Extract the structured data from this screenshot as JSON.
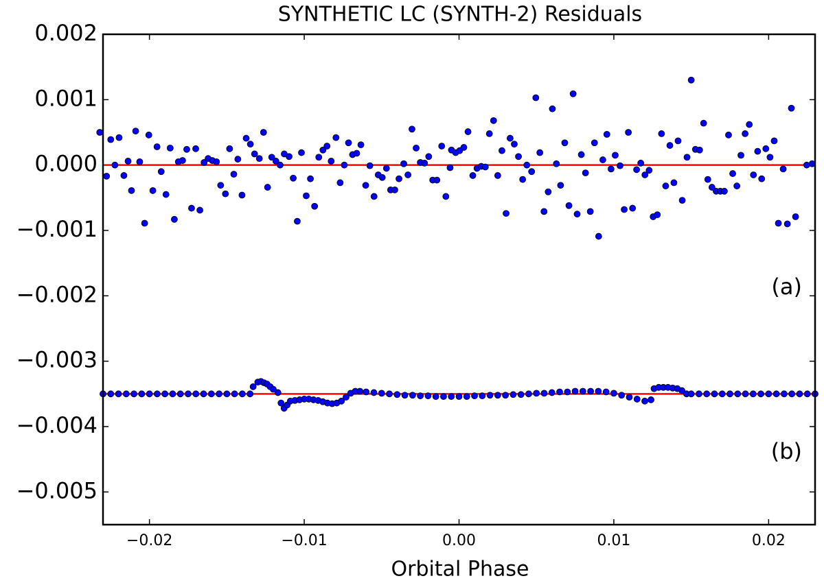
{
  "chart_data": {
    "type": "scatter",
    "title": "SYNTHETIC LC (SYNTH-2) Residuals",
    "xlabel": "Orbital Phase",
    "annotations": [
      "(a)",
      "(b)"
    ],
    "xlim": [
      -0.023,
      0.023
    ],
    "xticks": [
      {
        "value": -0.02,
        "label": "−0.02"
      },
      {
        "value": -0.01,
        "label": "−0.01"
      },
      {
        "value": 0,
        "label": "0.00"
      },
      {
        "value": 0.01,
        "label": "0.01"
      },
      {
        "value": 0.02,
        "label": "0.02"
      }
    ],
    "ylim": [
      -0.0055,
      0.002
    ],
    "yticks": [
      0.002,
      0.001,
      {
        "value": 0,
        "label": "0.000"
      },
      {
        "value": -0.001,
        "label": "−0.001"
      },
      {
        "value": -0.002,
        "label": "−0.002"
      },
      {
        "value": -0.003,
        "label": "−0.003"
      },
      {
        "value": -0.004,
        "label": "−0.004"
      },
      {
        "value": -0.005,
        "label": "−0.005"
      }
    ],
    "grid": false,
    "hlines": [
      0,
      -0.0035
    ],
    "hline_color": "#ff0000",
    "series": [
      {
        "color": "#0000ff",
        "x": [
          -0.02321,
          -0.02277,
          -0.0225,
          -0.02223,
          -0.02196,
          -0.02165,
          -0.02138,
          -0.02116,
          -0.02089,
          -0.02063,
          -0.02031,
          -0.02004,
          -0.01978,
          -0.01951,
          -0.01924,
          -0.01893,
          -0.01866,
          -0.01839,
          -0.01813,
          -0.01786,
          -0.01759,
          -0.01728,
          -0.01701,
          -0.01674,
          -0.01647,
          -0.01621,
          -0.01594,
          -0.01567,
          -0.0154,
          -0.01509,
          -0.01482,
          -0.01455,
          -0.01429,
          -0.01402,
          -0.01375,
          -0.01348,
          -0.01321,
          -0.0129,
          -0.01263,
          -0.01237,
          -0.0121,
          -0.01183,
          -0.01156,
          -0.01129,
          -0.01098,
          -0.01071,
          -0.01045,
          -0.01018,
          -0.00987,
          -0.0096,
          -0.00933,
          -0.00906,
          -0.00879,
          -0.00853,
          -0.00826,
          -0.00795,
          -0.00768,
          -0.00741,
          -0.00714,
          -0.00688,
          -0.00661,
          -0.00634,
          -0.00603,
          -0.00576,
          -0.00549,
          -0.00522,
          -0.00496,
          -0.00469,
          -0.00442,
          -0.00415,
          -0.00388,
          -0.00357,
          -0.0033,
          -0.00304,
          -0.00277,
          -0.0025,
          -0.00223,
          -0.00196,
          -0.0017,
          -0.00143,
          -0.00112,
          -0.00085,
          -0.00058,
          -0.00049,
          -0.00022,
          4e-05,
          0.00031,
          0.00058,
          0.00089,
          0.00116,
          0.00143,
          0.0017,
          0.00196,
          0.00223,
          0.0025,
          0.00277,
          0.00304,
          0.0033,
          0.00357,
          0.00384,
          0.00411,
          0.00438,
          0.00469,
          0.00496,
          0.00522,
          0.00549,
          0.00576,
          0.00603,
          0.00629,
          0.00656,
          0.00683,
          0.0071,
          0.00737,
          0.00763,
          0.0079,
          0.00817,
          0.00848,
          0.00875,
          0.00902,
          0.00929,
          0.00955,
          0.00982,
          0.01009,
          0.0104,
          0.01067,
          0.01094,
          0.01121,
          0.01147,
          0.01174,
          0.01201,
          0.01228,
          0.01254,
          0.01281,
          0.01308,
          0.01335,
          0.01362,
          0.01388,
          0.01415,
          0.01442,
          0.01473,
          0.015,
          0.01527,
          0.01554,
          0.0158,
          0.01607,
          0.01634,
          0.01661,
          0.01688,
          0.01714,
          0.01741,
          0.01768,
          0.01795,
          0.01821,
          0.01848,
          0.01875,
          0.01902,
          0.01929,
          0.01955,
          0.01982,
          0.02009,
          0.02036,
          0.02063,
          0.02094,
          0.02121,
          0.02147,
          0.02174,
          0.02246,
          0.02281
        ],
        "values": [
          0.0005,
          -0.00017,
          0.00039,
          0,
          0.00042,
          -0.00016,
          6e-05,
          -0.00039,
          0.00052,
          5e-05,
          -0.00089,
          0.00046,
          -0.00039,
          0.00028,
          -0.0001,
          -0.00045,
          0.00026,
          -0.00083,
          5e-05,
          7e-05,
          0.00024,
          -0.00066,
          0.00025,
          -0.00069,
          4e-05,
          0.0001,
          7e-05,
          5e-05,
          -0.00031,
          -0.00044,
          0.00025,
          -0.00014,
          9e-05,
          -0.00046,
          0.00041,
          0.00032,
          0.00017,
          0.0001,
          0.0005,
          -0.00034,
          0.00012,
          6e-05,
          0,
          0.00017,
          0.00013,
          -0.0002,
          -0.00086,
          0.00019,
          -0.00047,
          -0.00021,
          -0.00063,
          0.00012,
          0.00023,
          0.00029,
          6e-05,
          0.00042,
          -0.00027,
          0,
          0.00034,
          0.00016,
          0.00018,
          0.00031,
          -0.00031,
          -1e-05,
          -0.00048,
          -0.00015,
          -0.00019,
          -5e-05,
          -0.00038,
          -0.00038,
          -0.00021,
          2e-05,
          -0.00015,
          0.00055,
          0.00026,
          4e-05,
          3e-05,
          0.00013,
          -0.00023,
          -0.00023,
          0.00029,
          -0.00048,
          -4e-05,
          0.00023,
          0.00019,
          0.00022,
          0.00027,
          0.00051,
          -0.00016,
          -5e-05,
          -2e-05,
          -3e-05,
          0.00048,
          0.00068,
          -0.00016,
          0.00022,
          -0.00074,
          0.00041,
          0.00032,
          0.00013,
          -0.00022,
          0,
          -0.0001,
          0.00103,
          0.00019,
          -0.00071,
          -0.00041,
          0.00086,
          2e-05,
          -0.00031,
          0.00034,
          -0.00062,
          0.00109,
          -0.00075,
          0.00016,
          -0.00012,
          -0.00071,
          0.00034,
          -0.00109,
          8e-05,
          0.00047,
          -6e-05,
          0.00015,
          -1e-05,
          -0.00068,
          0.0005,
          -0.00066,
          -7e-05,
          3e-05,
          -0.00015,
          -8e-05,
          -0.00079,
          -0.00076,
          0.00048,
          -0.00032,
          0.0003,
          -0.00027,
          0.00037,
          -0.00054,
          0.00012,
          0.0013,
          0.00024,
          0.00023,
          0.00064,
          -0.00022,
          -0.00034,
          -0.0004,
          -0.0004,
          -0.0004,
          0.00046,
          -0.00013,
          -0.00032,
          0.00015,
          0.00048,
          0.00062,
          -0.00015,
          0.00021,
          -0.00021,
          0.00025,
          0.00012,
          0.00037,
          -0.00089,
          -6e-05,
          -0.0009,
          0.00087,
          -0.00079,
          0,
          2e-05
        ]
      },
      {
        "color": "#0000ff",
        "x": [
          -0.023,
          -0.0225,
          -0.022,
          -0.0215,
          -0.021,
          -0.0205,
          -0.02,
          -0.0195,
          -0.019,
          -0.0185,
          -0.018,
          -0.0175,
          -0.017,
          -0.0165,
          -0.016,
          -0.0155,
          -0.015,
          -0.0145,
          -0.014,
          -0.0135,
          -0.0133,
          -0.013,
          -0.0128,
          -0.0126,
          -0.0124,
          -0.0122,
          -0.012,
          -0.0117,
          -0.0115,
          -0.0113,
          -0.0111,
          -0.0109,
          -0.0106,
          -0.0103,
          -0.01,
          -0.0097,
          -0.0094,
          -0.0091,
          -0.0088,
          -0.0085,
          -0.0082,
          -0.0079,
          -0.0076,
          -0.0073,
          -0.007,
          -0.0067,
          -0.0064,
          -0.006,
          -0.0055,
          -0.005,
          -0.0045,
          -0.004,
          -0.0035,
          -0.003,
          -0.0025,
          -0.002,
          -0.0015,
          -0.001,
          -0.0005,
          0,
          0.0005,
          0.001,
          0.0015,
          0.002,
          0.0025,
          0.003,
          0.0035,
          0.004,
          0.0045,
          0.005,
          0.0055,
          0.006,
          0.0065,
          0.007,
          0.0075,
          0.008,
          0.0085,
          0.009,
          0.0095,
          0.01,
          0.0105,
          0.011,
          0.0115,
          0.012,
          0.0124,
          0.0126,
          0.0129,
          0.0132,
          0.0135,
          0.0138,
          0.0141,
          0.0144,
          0.0147,
          0.015,
          0.0155,
          0.016,
          0.0165,
          0.017,
          0.0175,
          0.018,
          0.0185,
          0.019,
          0.0195,
          0.02,
          0.0205,
          0.021,
          0.0215,
          0.022,
          0.0225,
          0.023
        ],
        "values": [
          -0.0035,
          -0.0035,
          -0.0035,
          -0.0035,
          -0.0035,
          -0.0035,
          -0.0035,
          -0.0035,
          -0.0035,
          -0.0035,
          -0.0035,
          -0.0035,
          -0.0035,
          -0.0035,
          -0.0035,
          -0.0035,
          -0.0035,
          -0.0035,
          -0.0035,
          -0.0035,
          -0.00339,
          -0.00332,
          -0.00331,
          -0.00333,
          -0.00335,
          -0.00339,
          -0.00343,
          -0.00348,
          -0.00364,
          -0.00372,
          -0.00367,
          -0.00361,
          -0.0036,
          -0.00359,
          -0.00358,
          -0.00358,
          -0.00359,
          -0.0036,
          -0.00362,
          -0.00364,
          -0.00365,
          -0.00364,
          -0.00361,
          -0.00355,
          -0.00349,
          -0.00346,
          -0.00346,
          -0.00347,
          -0.00348,
          -0.00349,
          -0.0035,
          -0.00351,
          -0.00352,
          -0.00352,
          -0.00353,
          -0.00353,
          -0.00354,
          -0.00354,
          -0.00354,
          -0.00354,
          -0.00354,
          -0.00353,
          -0.00353,
          -0.00352,
          -0.00352,
          -0.00352,
          -0.00351,
          -0.00351,
          -0.0035,
          -0.00349,
          -0.00349,
          -0.00348,
          -0.00347,
          -0.00347,
          -0.00346,
          -0.00346,
          -0.00346,
          -0.00346,
          -0.00347,
          -0.00349,
          -0.00352,
          -0.00355,
          -0.00358,
          -0.00361,
          -0.00359,
          -0.00342,
          -0.0034,
          -0.0034,
          -0.0034,
          -0.00341,
          -0.00342,
          -0.00345,
          -0.0035,
          -0.0035,
          -0.0035,
          -0.0035,
          -0.0035,
          -0.0035,
          -0.0035,
          -0.0035,
          -0.0035,
          -0.0035,
          -0.0035,
          -0.0035,
          -0.0035,
          -0.0035,
          -0.0035,
          -0.0035,
          -0.0035,
          -0.0035
        ]
      }
    ]
  }
}
